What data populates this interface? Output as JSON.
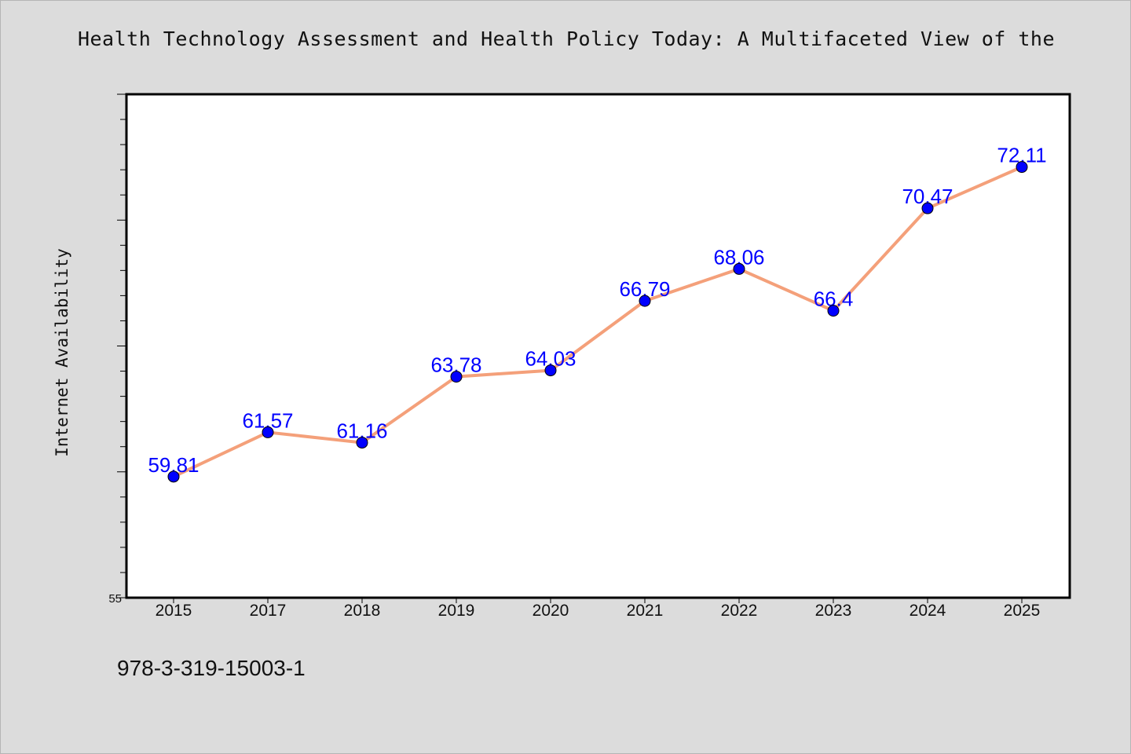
{
  "title": "Health Technology Assessment and Health Policy Today: A Multifaceted View of the",
  "footer_text": "978-3-319-15003-1",
  "colors": {
    "background": "#dcdcdc",
    "plot_background": "#ffffff",
    "line": "#f4a07a",
    "marker": "#0000ff",
    "data_label": "#0000ff",
    "text": "#111111"
  },
  "chart_data": {
    "type": "line",
    "title": "Health Technology Assessment and Health Policy Today: A Multifaceted View of the",
    "xlabel": "",
    "ylabel": "Internet Availability",
    "categories": [
      "2015",
      "2017",
      "2018",
      "2019",
      "2020",
      "2021",
      "2022",
      "2023",
      "2024",
      "2025"
    ],
    "series": [
      {
        "values": [
          59.81,
          61.57,
          61.16,
          63.78,
          64.03,
          66.79,
          68.06,
          66.4,
          70.47,
          72.11
        ]
      }
    ],
    "data_labels": [
      "59.81",
      "61.57",
      "61.16",
      "63.78",
      "64.03",
      "66.79",
      "68.06",
      "66.4",
      "70.47",
      "72.11"
    ],
    "ylim": [
      55,
      75
    ],
    "y_tick_labels": [
      "55"
    ],
    "grid": false,
    "legend": "none"
  }
}
